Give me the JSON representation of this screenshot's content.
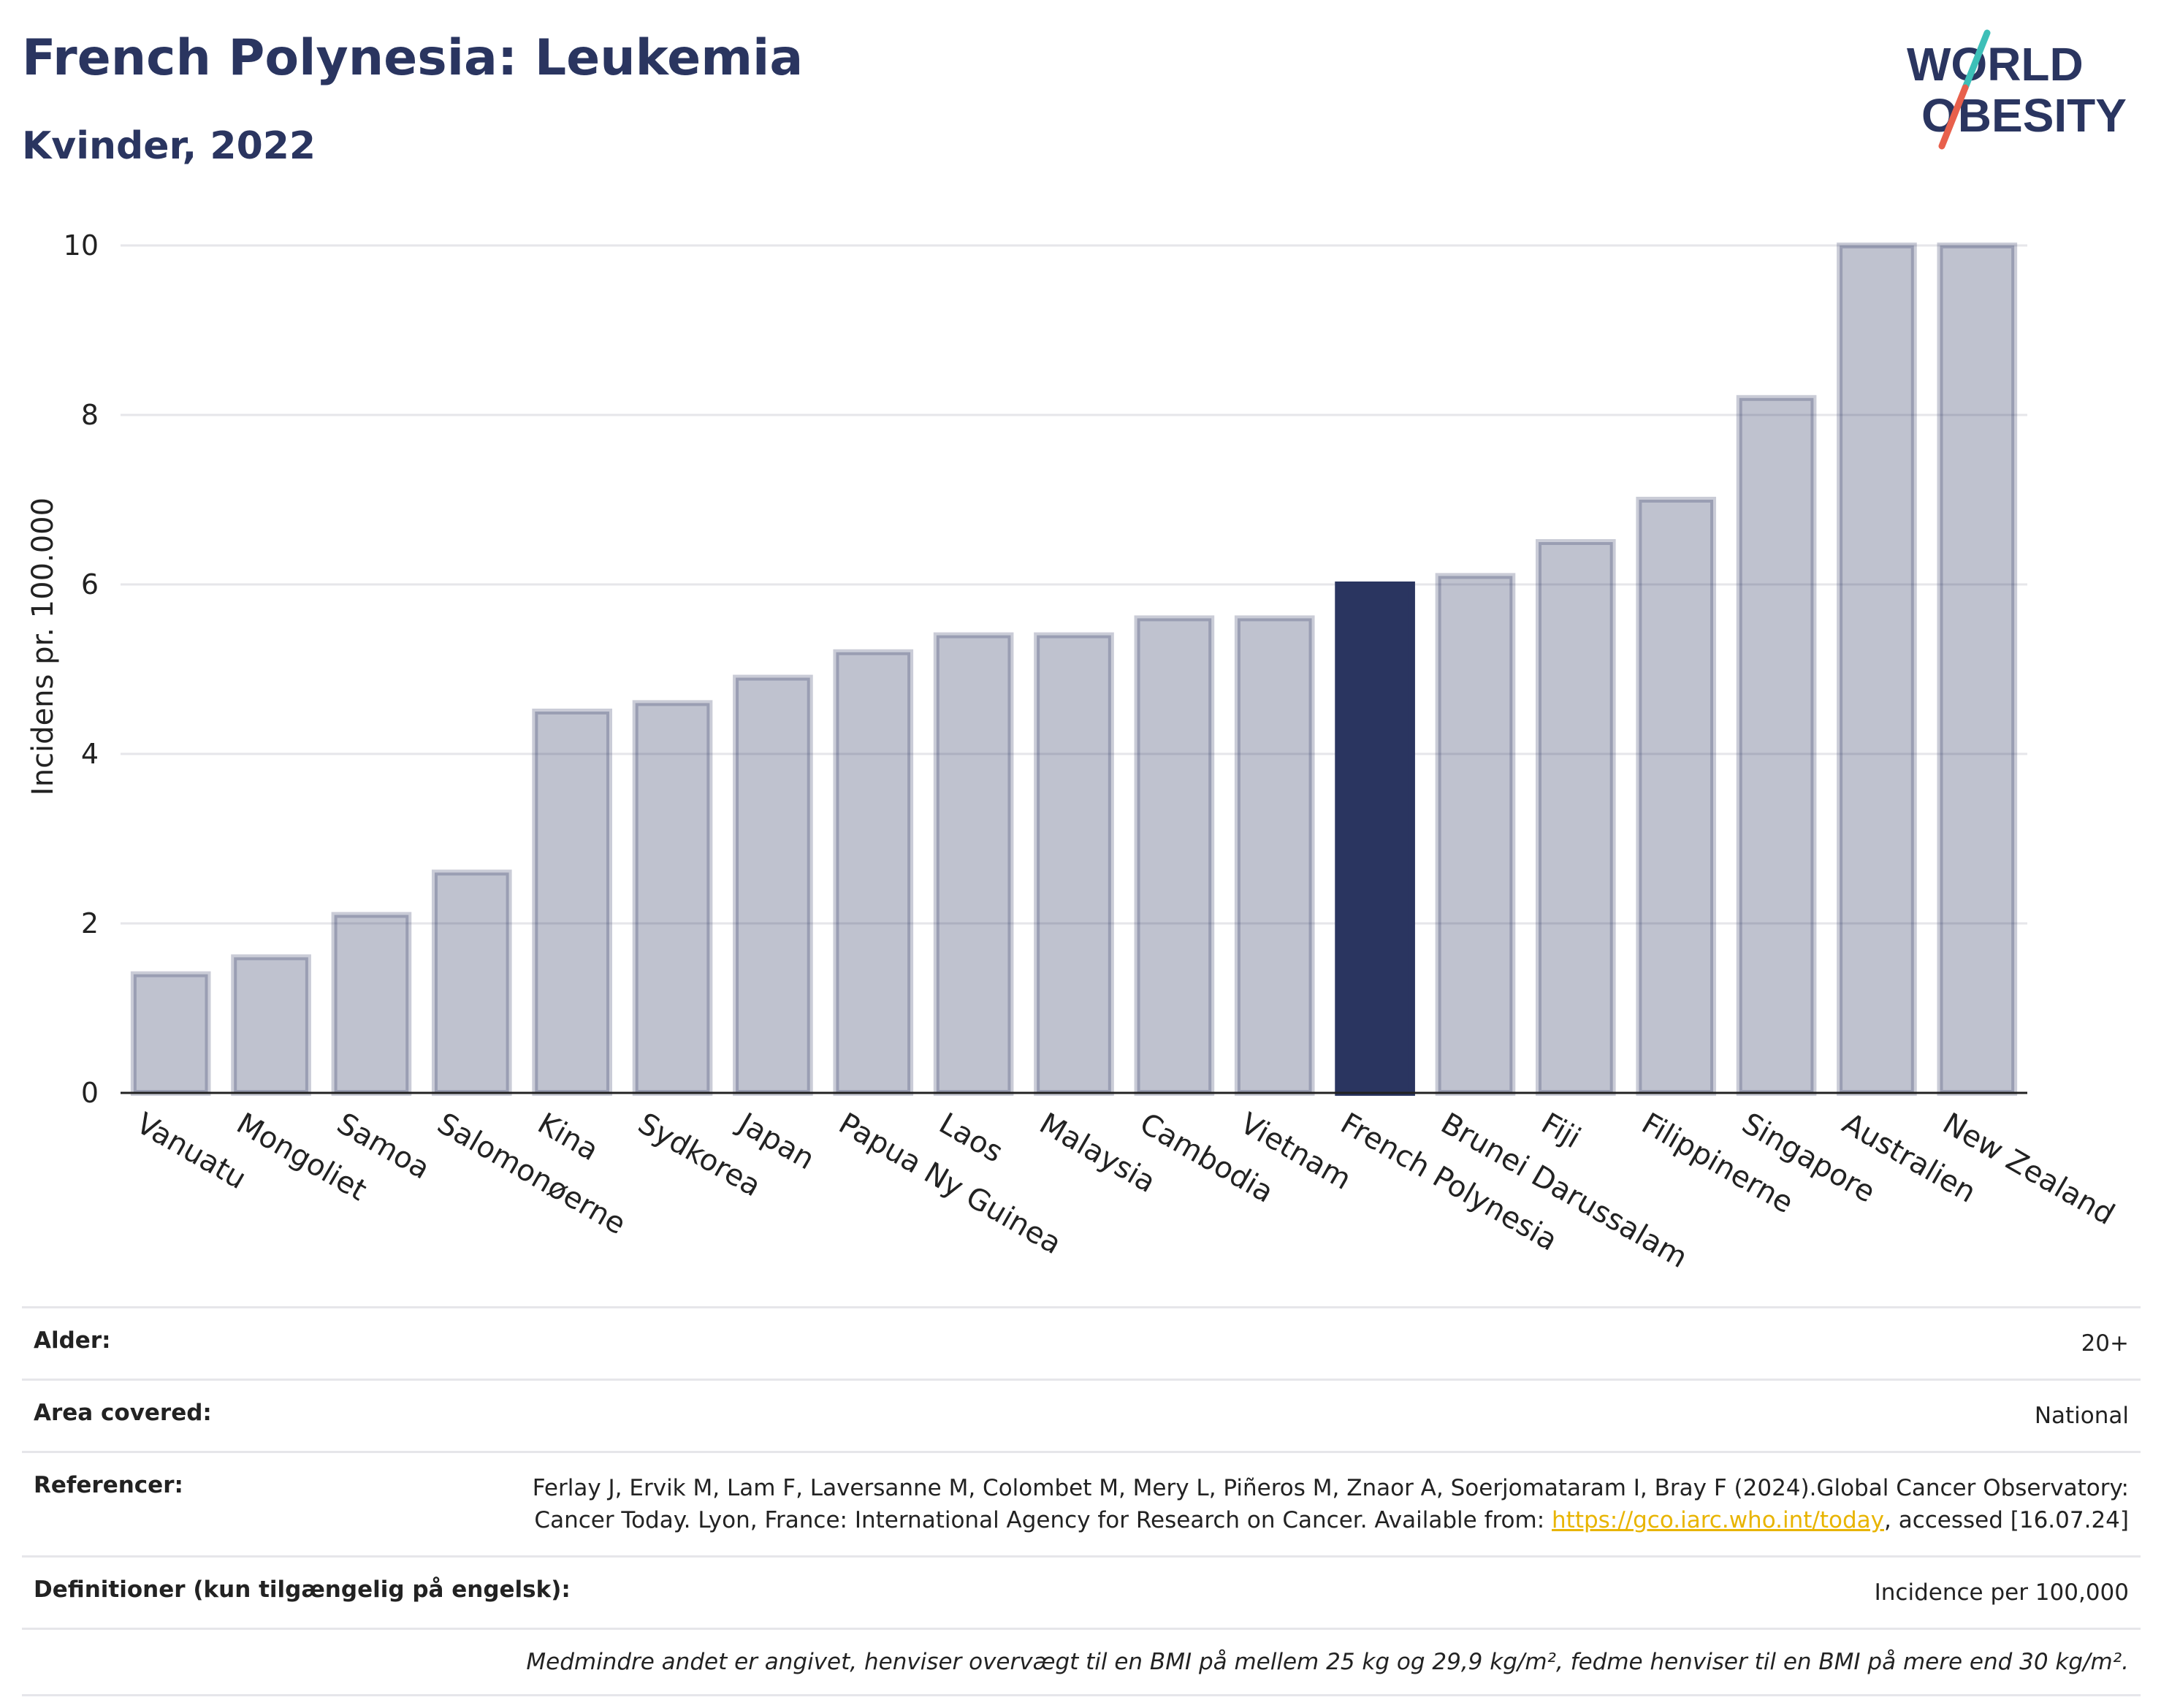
{
  "header": {
    "title": "French Polynesia: Leukemia",
    "subtitle": "Kvinder, 2022"
  },
  "logo": {
    "line1": "WORLD",
    "line2": "OBESITY",
    "colors": {
      "text": "#2a3560",
      "slash_teal": "#3dbfb8",
      "slash_red": "#e8604c"
    }
  },
  "chart_data": {
    "type": "bar",
    "ylabel": "Incidens pr. 100.000",
    "xlabel": "",
    "ylim": [
      0,
      10
    ],
    "yticks": [
      0,
      2,
      4,
      6,
      8,
      10
    ],
    "grid": true,
    "highlight": "French Polynesia",
    "colors": {
      "bar": "#2a3560",
      "bar_opacity": 0.3,
      "highlight": "#2a3560"
    },
    "categories": [
      "Vanuatu",
      "Mongoliet",
      "Samoa",
      "Salomonøerne",
      "Kina",
      "Sydkorea",
      "Japan",
      "Papua Ny Guinea",
      "Laos",
      "Malaysia",
      "Cambodia",
      "Vietnam",
      "French Polynesia",
      "Brunei Darussalam",
      "Fiji",
      "Filippinerne",
      "Singapore",
      "Australien",
      "New Zealand"
    ],
    "values": [
      1.4,
      1.6,
      2.1,
      2.6,
      4.5,
      4.6,
      4.9,
      5.2,
      5.4,
      5.4,
      5.6,
      5.6,
      6.0,
      6.1,
      6.5,
      7.0,
      8.2,
      10.0,
      10.0
    ]
  },
  "meta": {
    "age_label": "Alder:",
    "age_value": "20+",
    "area_label": "Area covered:",
    "area_value": "National",
    "ref_label": "Referencer:",
    "ref_text_1": "Ferlay J, Ervik M, Lam F, Laversanne M, Colombet M, Mery L, Piñeros M, Znaor A, Soerjomataram I, Bray F (2024).Global Cancer Observatory: Cancer Today. Lyon, France: International Agency for Research on Cancer. Available from: ",
    "ref_link": "https://gco.iarc.who.int/today",
    "ref_text_2": ", accessed [16.07.24]",
    "def_label": "Definitioner (kun tilgængelig på engelsk):",
    "def_value": "Incidence per 100,000",
    "note": "Medmindre andet er angivet, henviser overvægt til en BMI på mellem 25 kg og 29,9 kg/m², fedme henviser til en BMI på mere end 30 kg/m²."
  }
}
